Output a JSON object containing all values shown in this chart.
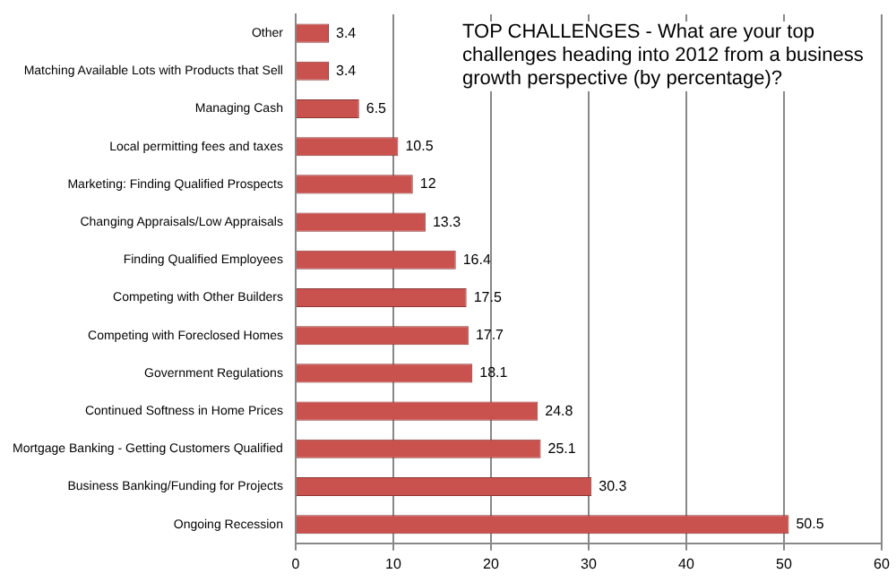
{
  "chart_data": {
    "type": "bar",
    "orientation": "horizontal",
    "title": "TOP CHALLENGES - What are your top challenges heading into 2012 from a business growth perspective (by percentage)?",
    "categories": [
      "Other",
      "Matching Available Lots with Products that Sell",
      "Managing Cash",
      "Local permitting fees and taxes",
      "Marketing: Finding Qualified Prospects",
      "Changing Appraisals/Low Appraisals",
      "Finding Qualified Employees",
      "Competing with Other Builders",
      "Competing with Foreclosed Homes",
      "Government Regulations",
      "Continued Softness in Home Prices",
      "Mortgage Banking - Getting Customers Qualified",
      "Business Banking/Funding for Projects",
      "Ongoing Recession"
    ],
    "values": [
      3.4,
      3.4,
      6.5,
      10.5,
      12,
      13.3,
      16.4,
      17.5,
      17.7,
      18.1,
      24.8,
      25.1,
      30.3,
      50.5
    ],
    "color": "#c9524f",
    "xlim": [
      0,
      60
    ],
    "xticks": [
      0,
      10,
      20,
      30,
      40,
      50,
      60
    ],
    "grid": "x",
    "data_labels": true
  }
}
